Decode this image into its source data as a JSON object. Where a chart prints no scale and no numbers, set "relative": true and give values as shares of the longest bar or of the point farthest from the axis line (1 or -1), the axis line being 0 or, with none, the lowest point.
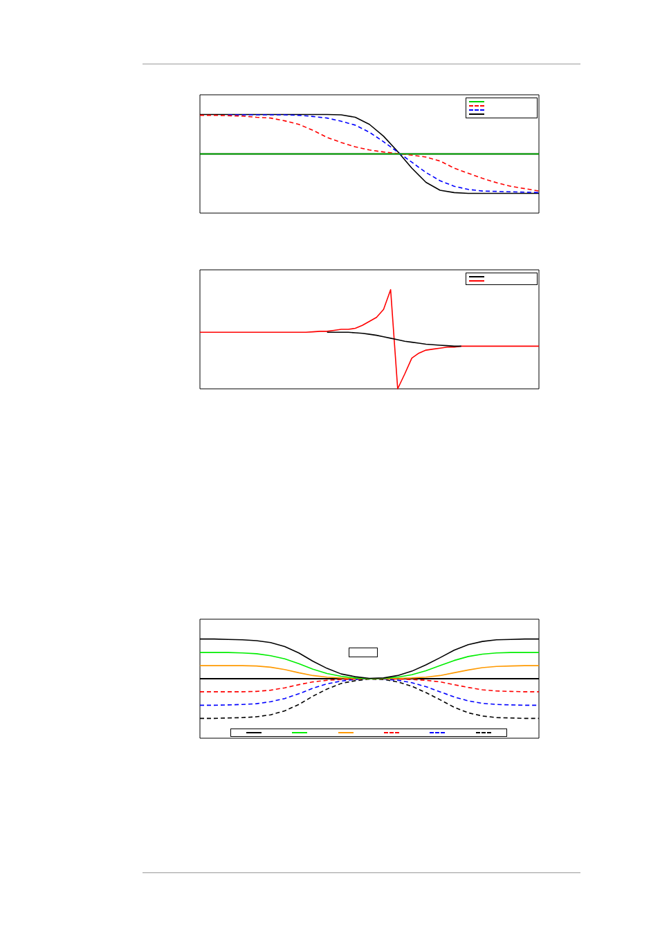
{
  "chart_data": [
    {
      "type": "line",
      "relative": true,
      "categories": [
        null,
        null,
        null,
        null,
        null,
        null,
        null,
        null,
        null,
        null,
        null,
        null,
        null,
        null,
        null,
        null,
        null,
        null,
        null,
        null,
        null,
        null,
        null,
        null,
        null
      ],
      "series": [
        {
          "color": "#00cc00",
          "line_style": "solid",
          "values": [
            0,
            0,
            0,
            0,
            0,
            0,
            0,
            0,
            0,
            0,
            0,
            0,
            0,
            0,
            0,
            0,
            0,
            0,
            0,
            0,
            0,
            0,
            0,
            0,
            0
          ]
        },
        {
          "color": "#ff0000",
          "line_style": "dashed",
          "values": [
            0.98,
            0.98,
            0.97,
            0.96,
            0.93,
            0.91,
            0.84,
            0.75,
            0.6,
            0.42,
            0.29,
            0.18,
            0.1,
            0.05,
            0.01,
            -0.03,
            -0.08,
            -0.18,
            -0.36,
            -0.49,
            -0.62,
            -0.73,
            -0.82,
            -0.88,
            -0.94
          ]
        },
        {
          "color": "#0000ff",
          "line_style": "dashed",
          "values": [
            null,
            null,
            0.99,
            0.99,
            0.99,
            0.99,
            0.99,
            0.98,
            0.95,
            0.91,
            0.83,
            0.73,
            0.55,
            0.31,
            0.05,
            -0.21,
            -0.47,
            -0.68,
            -0.82,
            -0.9,
            -0.94,
            -0.95,
            -0.96,
            -0.97,
            -0.98
          ]
        },
        {
          "color": "#000000",
          "line_style": "solid",
          "values": [
            1,
            1,
            1,
            1,
            1,
            1,
            1,
            1,
            1,
            1,
            0.99,
            0.93,
            0.75,
            0.45,
            0.06,
            -0.36,
            -0.72,
            -0.92,
            -0.98,
            -1,
            -1,
            -1,
            -1,
            -1,
            -1
          ]
        }
      ]
    },
    {
      "type": "line",
      "relative": true,
      "categories": [
        null,
        null,
        null,
        null,
        null,
        null,
        null,
        null,
        null,
        null,
        null,
        null,
        null,
        null,
        null,
        null,
        null,
        null,
        null,
        null,
        null,
        null,
        null,
        null,
        null,
        null,
        null,
        null,
        null,
        null,
        null,
        null,
        null,
        null,
        null,
        null,
        null,
        null,
        null,
        null,
        null,
        null,
        null,
        null,
        null,
        null,
        null,
        null,
        null
      ],
      "series": [
        {
          "color": "#000000",
          "line_style": "solid",
          "values": [
            null,
            null,
            null,
            null,
            null,
            null,
            null,
            null,
            null,
            null,
            null,
            null,
            null,
            null,
            null,
            null,
            null,
            null,
            0.57,
            0.57,
            0.57,
            0.57,
            0.565,
            0.56,
            0.55,
            0.54,
            0.525,
            0.51,
            0.495,
            0.48,
            0.47,
            0.46,
            0.45,
            0.445,
            0.44,
            0.435,
            0.43,
            0.43,
            null,
            null,
            null,
            null,
            null,
            null,
            null,
            null,
            null,
            null,
            null
          ]
        },
        {
          "color": "#ff0000",
          "line_style": "solid",
          "values": [
            0.57,
            0.57,
            0.57,
            0.57,
            0.57,
            0.57,
            0.57,
            0.57,
            0.57,
            0.57,
            0.57,
            0.57,
            0.57,
            0.57,
            0.57,
            0.57,
            0.575,
            0.58,
            0.58,
            0.59,
            0.6,
            0.6,
            0.61,
            0.64,
            0.68,
            0.72,
            0.8,
            1,
            0,
            0.15,
            0.31,
            0.36,
            0.39,
            0.4,
            0.41,
            0.42,
            0.42,
            0.43,
            0.43,
            0.43,
            0.43,
            0.43,
            0.43,
            0.43,
            0.43,
            0.43,
            0.43,
            0.43,
            0.43
          ]
        }
      ]
    },
    {
      "type": "line",
      "relative": true,
      "categories": [
        null,
        null,
        null,
        null,
        null,
        null,
        null,
        null,
        null,
        null,
        null,
        null,
        null,
        null,
        null,
        null,
        null,
        null,
        null,
        null,
        null,
        null,
        null,
        null,
        null
      ],
      "series": [
        {
          "color": "#000000",
          "line_style": "solid",
          "values": [
            1,
            1,
            0.99,
            0.98,
            0.96,
            0.91,
            0.81,
            0.65,
            0.44,
            0.26,
            0.12,
            0.05,
            0.01,
            0.02,
            0.08,
            0.19,
            0.35,
            0.53,
            0.72,
            0.86,
            0.94,
            0.98,
            0.99,
            1,
            1
          ]
        },
        {
          "color": "#00ee00",
          "line_style": "solid",
          "values": [
            0.66,
            0.66,
            0.66,
            0.65,
            0.63,
            0.58,
            0.5,
            0.38,
            0.24,
            0.13,
            0.06,
            0.02,
            0,
            0.01,
            0.04,
            0.1,
            0.2,
            0.33,
            0.46,
            0.56,
            0.62,
            0.65,
            0.66,
            0.66,
            0.66
          ]
        },
        {
          "color": "#ff9900",
          "line_style": "solid",
          "values": [
            0.33,
            0.33,
            0.33,
            0.33,
            0.32,
            0.29,
            0.23,
            0.15,
            0.08,
            0.04,
            0.02,
            0.01,
            0,
            0,
            0.01,
            0.02,
            0.04,
            0.08,
            0.15,
            0.22,
            0.28,
            0.31,
            0.32,
            0.33,
            0.33
          ]
        },
        {
          "color": "#ff0000",
          "line_style": "dashed",
          "values": [
            -0.33,
            -0.33,
            -0.33,
            -0.33,
            -0.32,
            -0.29,
            -0.23,
            -0.15,
            -0.08,
            -0.04,
            -0.02,
            -0.01,
            0,
            0,
            -0.01,
            -0.02,
            -0.04,
            -0.08,
            -0.15,
            -0.22,
            -0.28,
            -0.31,
            -0.32,
            -0.33,
            -0.33
          ]
        },
        {
          "color": "#0000ff",
          "line_style": "dashed",
          "values": [
            -0.67,
            -0.67,
            -0.66,
            -0.65,
            -0.63,
            -0.58,
            -0.5,
            -0.38,
            -0.24,
            -0.13,
            -0.06,
            -0.02,
            0,
            -0.01,
            -0.04,
            -0.1,
            -0.2,
            -0.33,
            -0.46,
            -0.56,
            -0.62,
            -0.65,
            -0.66,
            -0.67,
            -0.67
          ]
        },
        {
          "color": "#000000",
          "line_style": "dashed",
          "values": [
            -1,
            -1,
            -0.99,
            -0.98,
            -0.96,
            -0.91,
            -0.81,
            -0.65,
            -0.44,
            -0.26,
            -0.12,
            -0.05,
            -0.01,
            -0.02,
            -0.08,
            -0.19,
            -0.35,
            -0.53,
            -0.72,
            -0.86,
            -0.94,
            -0.98,
            -0.99,
            -1,
            -1
          ]
        }
      ]
    }
  ]
}
